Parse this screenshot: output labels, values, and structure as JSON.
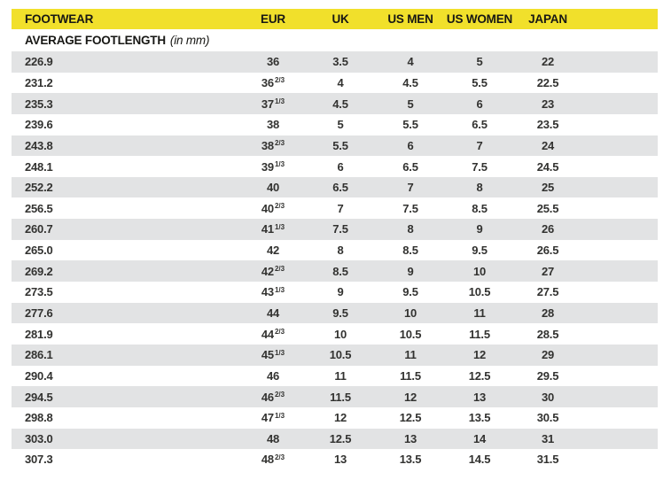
{
  "colors": {
    "header_bg": "#F1E02B",
    "row_alt_bg": "#E2E3E4",
    "text": "#171714"
  },
  "header": {
    "columns": [
      "FOOTWEAR",
      "EUR",
      "UK",
      "US MEN",
      "US WOMEN",
      "JAPAN"
    ]
  },
  "subheader": {
    "label": "AVERAGE FOOTLENGTH",
    "note": "(in mm)"
  },
  "rows": [
    {
      "mm": "226.9",
      "eur": "36",
      "eur_frac": "",
      "uk": "3.5",
      "us_men": "4",
      "us_women": "5",
      "japan": "22"
    },
    {
      "mm": "231.2",
      "eur": "36",
      "eur_frac": "2/3",
      "uk": "4",
      "us_men": "4.5",
      "us_women": "5.5",
      "japan": "22.5"
    },
    {
      "mm": "235.3",
      "eur": "37",
      "eur_frac": "1/3",
      "uk": "4.5",
      "us_men": "5",
      "us_women": "6",
      "japan": "23"
    },
    {
      "mm": "239.6",
      "eur": "38",
      "eur_frac": "",
      "uk": "5",
      "us_men": "5.5",
      "us_women": "6.5",
      "japan": "23.5"
    },
    {
      "mm": "243.8",
      "eur": "38",
      "eur_frac": "2/3",
      "uk": "5.5",
      "us_men": "6",
      "us_women": "7",
      "japan": "24"
    },
    {
      "mm": "248.1",
      "eur": "39",
      "eur_frac": "1/3",
      "uk": "6",
      "us_men": "6.5",
      "us_women": "7.5",
      "japan": "24.5"
    },
    {
      "mm": "252.2",
      "eur": "40",
      "eur_frac": "",
      "uk": "6.5",
      "us_men": "7",
      "us_women": "8",
      "japan": "25"
    },
    {
      "mm": "256.5",
      "eur": "40",
      "eur_frac": "2/3",
      "uk": "7",
      "us_men": "7.5",
      "us_women": "8.5",
      "japan": "25.5"
    },
    {
      "mm": "260.7",
      "eur": "41",
      "eur_frac": "1/3",
      "uk": "7.5",
      "us_men": "8",
      "us_women": "9",
      "japan": "26"
    },
    {
      "mm": "265.0",
      "eur": "42",
      "eur_frac": "",
      "uk": "8",
      "us_men": "8.5",
      "us_women": "9.5",
      "japan": "26.5"
    },
    {
      "mm": "269.2",
      "eur": "42",
      "eur_frac": "2/3",
      "uk": "8.5",
      "us_men": "9",
      "us_women": "10",
      "japan": "27"
    },
    {
      "mm": "273.5",
      "eur": "43",
      "eur_frac": "1/3",
      "uk": "9",
      "us_men": "9.5",
      "us_women": "10.5",
      "japan": "27.5"
    },
    {
      "mm": "277.6",
      "eur": "44",
      "eur_frac": "",
      "uk": "9.5",
      "us_men": "10",
      "us_women": "11",
      "japan": "28"
    },
    {
      "mm": "281.9",
      "eur": "44",
      "eur_frac": "2/3",
      "uk": "10",
      "us_men": "10.5",
      "us_women": "11.5",
      "japan": "28.5"
    },
    {
      "mm": "286.1",
      "eur": "45",
      "eur_frac": "1/3",
      "uk": "10.5",
      "us_men": "11",
      "us_women": "12",
      "japan": "29"
    },
    {
      "mm": "290.4",
      "eur": "46",
      "eur_frac": "",
      "uk": "11",
      "us_men": "11.5",
      "us_women": "12.5",
      "japan": "29.5"
    },
    {
      "mm": "294.5",
      "eur": "46",
      "eur_frac": "2/3",
      "uk": "11.5",
      "us_men": "12",
      "us_women": "13",
      "japan": "30"
    },
    {
      "mm": "298.8",
      "eur": "47",
      "eur_frac": "1/3",
      "uk": "12",
      "us_men": "12.5",
      "us_women": "13.5",
      "japan": "30.5"
    },
    {
      "mm": "303.0",
      "eur": "48",
      "eur_frac": "",
      "uk": "12.5",
      "us_men": "13",
      "us_women": "14",
      "japan": "31"
    },
    {
      "mm": "307.3",
      "eur": "48",
      "eur_frac": "2/3",
      "uk": "13",
      "us_men": "13.5",
      "us_women": "14.5",
      "japan": "31.5"
    }
  ]
}
